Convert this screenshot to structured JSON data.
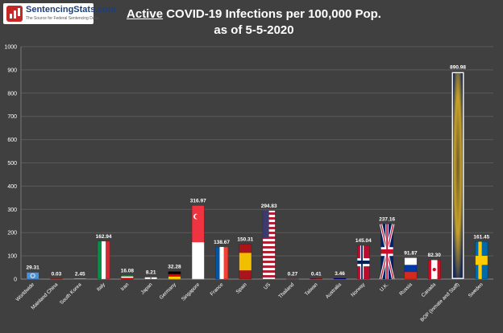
{
  "logo": {
    "name": "SentencingStats.com",
    "tagline": "The Source for Federal Sentencing Data"
  },
  "title": {
    "emphasis": "Active",
    "line1_rest": "COVID-19 Infections per 100,000 Pop.",
    "line2": "as of 5-5-2020"
  },
  "chart_data": {
    "type": "bar",
    "title": "Active COVID-19 Infections per 100,000 Pop. as of 5-5-2020",
    "xlabel": "",
    "ylabel": "",
    "ylim": [
      0,
      1000
    ],
    "yticks": [
      "0",
      "100",
      "200",
      "300",
      "400",
      "500",
      "600",
      "700",
      "800",
      "900",
      "1000"
    ],
    "grid": true,
    "categories": [
      "Worldwide",
      "Mainland China",
      "South Korea",
      "Italy",
      "Iran",
      "Japan",
      "Germany",
      "Singapore",
      "France",
      "Spain",
      "US",
      "Thailand",
      "Taiwan",
      "Australia",
      "Norway",
      "U.K.",
      "Russia",
      "Canada",
      "BOP (Inmate and Staff)",
      "Sweden"
    ],
    "values": [
      29.31,
      0.03,
      2.45,
      162.94,
      16.08,
      8.21,
      32.28,
      316.97,
      138.67,
      150.31,
      294.83,
      0.27,
      0.41,
      3.46,
      145.04,
      237.16,
      91.87,
      82.3,
      890.98,
      161.45
    ],
    "value_labels": [
      "29.31",
      "0.03",
      "2.45",
      "162.94",
      "16.08",
      "8.21",
      "32.28",
      "316.97",
      "138.67",
      "150.31",
      "294.83",
      "0.27",
      "0.41",
      "3.46",
      "145.04",
      "237.16",
      "91.87",
      "82.30",
      "890.98",
      "161.45"
    ],
    "bar_fill": [
      "un-flag",
      "china-flag",
      "south-korea-flag",
      "italy-flag",
      "iran-flag",
      "japan-flag",
      "germany-flag",
      "singapore-flag",
      "france-flag",
      "spain-flag",
      "us-flag",
      "thailand-flag",
      "taiwan-flag",
      "australia-flag",
      "norway-flag",
      "uk-flag",
      "russia-flag",
      "canada-flag",
      "bop-seal",
      "sweden-flag"
    ]
  },
  "colors": {
    "background": "#404040",
    "gridline": "#5a5a5a",
    "axis_text": "#ffffff"
  }
}
